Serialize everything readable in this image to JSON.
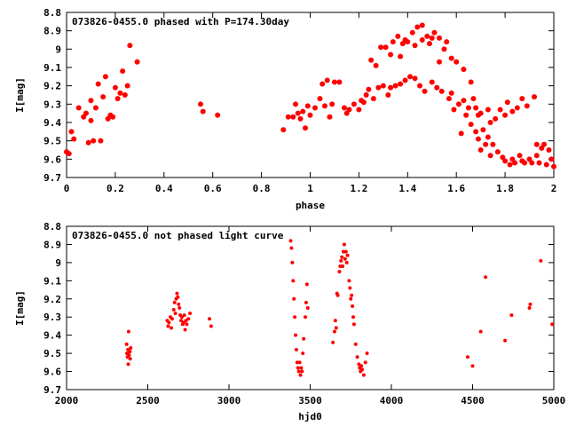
{
  "chart_data": [
    {
      "type": "scatter",
      "title": "073826-0455.0 phased with P=174.30day",
      "xlabel": "phase",
      "ylabel": "I[mag]",
      "xlim": [
        0,
        2
      ],
      "ylim": [
        8.8,
        9.7
      ],
      "y_inverted": true,
      "xticks": [
        "0",
        "0.2",
        "0.4",
        "0.6",
        "0.8",
        "1",
        "1.2",
        "1.4",
        "1.6",
        "1.8",
        "2"
      ],
      "yticks": [
        "8.8",
        "8.9",
        "9",
        "9.1",
        "9.2",
        "9.3",
        "9.4",
        "9.5",
        "9.6",
        "9.7"
      ],
      "color": "#ff0000",
      "marker": "filled-circle",
      "points": [
        [
          0.0,
          9.56
        ],
        [
          0.01,
          9.57
        ],
        [
          0.02,
          9.45
        ],
        [
          0.03,
          9.49
        ],
        [
          0.05,
          9.32
        ],
        [
          0.07,
          9.37
        ],
        [
          0.08,
          9.35
        ],
        [
          0.09,
          9.51
        ],
        [
          0.1,
          9.28
        ],
        [
          0.1,
          9.39
        ],
        [
          0.11,
          9.5
        ],
        [
          0.12,
          9.32
        ],
        [
          0.13,
          9.19
        ],
        [
          0.14,
          9.5
        ],
        [
          0.15,
          9.26
        ],
        [
          0.16,
          9.15
        ],
        [
          0.17,
          9.38
        ],
        [
          0.18,
          9.36
        ],
        [
          0.19,
          9.37
        ],
        [
          0.2,
          9.21
        ],
        [
          0.21,
          9.27
        ],
        [
          0.22,
          9.24
        ],
        [
          0.23,
          9.12
        ],
        [
          0.24,
          9.25
        ],
        [
          0.25,
          9.2
        ],
        [
          0.26,
          8.98
        ],
        [
          0.29,
          9.07
        ],
        [
          0.55,
          9.3
        ],
        [
          0.56,
          9.34
        ],
        [
          0.62,
          9.36
        ],
        [
          0.89,
          9.44
        ],
        [
          0.91,
          9.37
        ],
        [
          0.93,
          9.37
        ],
        [
          0.94,
          9.3
        ],
        [
          0.95,
          9.35
        ],
        [
          0.96,
          9.38
        ],
        [
          0.97,
          9.34
        ],
        [
          0.98,
          9.43
        ],
        [
          0.99,
          9.31
        ],
        [
          1.0,
          9.36
        ],
        [
          1.02,
          9.32
        ],
        [
          1.04,
          9.27
        ],
        [
          1.05,
          9.19
        ],
        [
          1.06,
          9.31
        ],
        [
          1.07,
          9.17
        ],
        [
          1.08,
          9.37
        ],
        [
          1.09,
          9.3
        ],
        [
          1.1,
          9.18
        ],
        [
          1.12,
          9.18
        ],
        [
          1.14,
          9.32
        ],
        [
          1.15,
          9.35
        ],
        [
          1.16,
          9.33
        ],
        [
          1.18,
          9.3
        ],
        [
          1.2,
          9.33
        ],
        [
          1.21,
          9.28
        ],
        [
          1.22,
          9.29
        ],
        [
          1.23,
          9.25
        ],
        [
          1.24,
          9.22
        ],
        [
          1.25,
          9.06
        ],
        [
          1.26,
          9.27
        ],
        [
          1.27,
          9.09
        ],
        [
          1.28,
          9.21
        ],
        [
          1.29,
          8.99
        ],
        [
          1.3,
          9.2
        ],
        [
          1.31,
          8.99
        ],
        [
          1.32,
          9.25
        ],
        [
          1.33,
          9.21
        ],
        [
          1.33,
          9.03
        ],
        [
          1.34,
          8.96
        ],
        [
          1.35,
          9.2
        ],
        [
          1.36,
          8.93
        ],
        [
          1.37,
          9.19
        ],
        [
          1.37,
          9.04
        ],
        [
          1.38,
          8.97
        ],
        [
          1.39,
          9.17
        ],
        [
          1.39,
          8.95
        ],
        [
          1.4,
          8.96
        ],
        [
          1.41,
          9.15
        ],
        [
          1.42,
          8.91
        ],
        [
          1.43,
          9.16
        ],
        [
          1.43,
          8.98
        ],
        [
          1.44,
          8.88
        ],
        [
          1.45,
          9.2
        ],
        [
          1.46,
          8.95
        ],
        [
          1.46,
          8.87
        ],
        [
          1.47,
          9.23
        ],
        [
          1.48,
          8.93
        ],
        [
          1.49,
          8.97
        ],
        [
          1.5,
          9.18
        ],
        [
          1.5,
          8.94
        ],
        [
          1.51,
          8.91
        ],
        [
          1.52,
          9.21
        ],
        [
          1.53,
          8.94
        ],
        [
          1.53,
          9.07
        ],
        [
          1.54,
          9.23
        ],
        [
          1.55,
          9.0
        ],
        [
          1.56,
          8.96
        ],
        [
          1.57,
          9.27
        ],
        [
          1.58,
          9.05
        ],
        [
          1.58,
          9.24
        ],
        [
          1.59,
          9.33
        ],
        [
          1.6,
          9.07
        ],
        [
          1.61,
          9.3
        ],
        [
          1.62,
          9.46
        ],
        [
          1.63,
          9.28
        ],
        [
          1.63,
          9.11
        ],
        [
          1.64,
          9.36
        ],
        [
          1.65,
          9.32
        ],
        [
          1.66,
          9.18
        ],
        [
          1.66,
          9.41
        ],
        [
          1.67,
          9.27
        ],
        [
          1.68,
          9.45
        ],
        [
          1.68,
          9.32
        ],
        [
          1.69,
          9.49
        ],
        [
          1.69,
          9.36
        ],
        [
          1.7,
          9.55
        ],
        [
          1.7,
          9.35
        ],
        [
          1.71,
          9.44
        ],
        [
          1.72,
          9.52
        ],
        [
          1.73,
          9.33
        ],
        [
          1.73,
          9.48
        ],
        [
          1.74,
          9.58
        ],
        [
          1.74,
          9.4
        ],
        [
          1.75,
          9.52
        ],
        [
          1.76,
          9.38
        ],
        [
          1.77,
          9.56
        ],
        [
          1.78,
          9.33
        ],
        [
          1.79,
          9.59
        ],
        [
          1.8,
          9.36
        ],
        [
          1.8,
          9.61
        ],
        [
          1.81,
          9.29
        ],
        [
          1.82,
          9.63
        ],
        [
          1.83,
          9.34
        ],
        [
          1.83,
          9.6
        ],
        [
          1.84,
          9.62
        ],
        [
          1.85,
          9.32
        ],
        [
          1.86,
          9.58
        ],
        [
          1.87,
          9.61
        ],
        [
          1.87,
          9.27
        ],
        [
          1.88,
          9.62
        ],
        [
          1.89,
          9.31
        ],
        [
          1.9,
          9.6
        ],
        [
          1.91,
          9.62
        ],
        [
          1.92,
          9.26
        ],
        [
          1.93,
          9.58
        ],
        [
          1.93,
          9.52
        ],
        [
          1.94,
          9.62
        ],
        [
          1.95,
          9.54
        ],
        [
          1.96,
          9.52
        ],
        [
          1.97,
          9.63
        ],
        [
          1.98,
          9.55
        ],
        [
          1.99,
          9.6
        ],
        [
          2.0,
          9.64
        ]
      ]
    },
    {
      "type": "scatter",
      "title": "073826-0455.0 not phased light curve",
      "xlabel": "hjd0",
      "ylabel": "I[mag]",
      "xlim": [
        2000,
        5000
      ],
      "ylim": [
        8.8,
        9.7
      ],
      "y_inverted": true,
      "xticks": [
        "2000",
        "2500",
        "3000",
        "3500",
        "4000",
        "4500",
        "5000"
      ],
      "yticks": [
        "8.8",
        "8.9",
        "9",
        "9.1",
        "9.2",
        "9.3",
        "9.4",
        "9.5",
        "9.6",
        "9.7"
      ],
      "color": "#ff0000",
      "marker": "filled-circle",
      "points": [
        [
          2370,
          9.45
        ],
        [
          2372,
          9.5
        ],
        [
          2375,
          9.52
        ],
        [
          2378,
          9.48
        ],
        [
          2380,
          9.56
        ],
        [
          2382,
          9.38
        ],
        [
          2385,
          9.51
        ],
        [
          2390,
          9.49
        ],
        [
          2392,
          9.53
        ],
        [
          2395,
          9.47
        ],
        [
          2620,
          9.32
        ],
        [
          2625,
          9.35
        ],
        [
          2630,
          9.33
        ],
        [
          2640,
          9.3
        ],
        [
          2645,
          9.36
        ],
        [
          2650,
          9.31
        ],
        [
          2660,
          9.26
        ],
        [
          2665,
          9.22
        ],
        [
          2670,
          9.28
        ],
        [
          2675,
          9.2
        ],
        [
          2680,
          9.17
        ],
        [
          2685,
          9.19
        ],
        [
          2690,
          9.23
        ],
        [
          2695,
          9.25
        ],
        [
          2700,
          9.29
        ],
        [
          2705,
          9.32
        ],
        [
          2710,
          9.3
        ],
        [
          2715,
          9.34
        ],
        [
          2720,
          9.33
        ],
        [
          2725,
          9.29
        ],
        [
          2730,
          9.37
        ],
        [
          2735,
          9.32
        ],
        [
          2740,
          9.34
        ],
        [
          2750,
          9.31
        ],
        [
          2760,
          9.28
        ],
        [
          2880,
          9.31
        ],
        [
          2890,
          9.35
        ],
        [
          3380,
          8.88
        ],
        [
          3385,
          8.92
        ],
        [
          3390,
          9.0
        ],
        [
          3395,
          9.1
        ],
        [
          3400,
          9.2
        ],
        [
          3405,
          9.3
        ],
        [
          3410,
          9.4
        ],
        [
          3415,
          9.48
        ],
        [
          3420,
          9.55
        ],
        [
          3425,
          9.58
        ],
        [
          3430,
          9.6
        ],
        [
          3435,
          9.55
        ],
        [
          3440,
          9.62
        ],
        [
          3445,
          9.58
        ],
        [
          3450,
          9.6
        ],
        [
          3455,
          9.5
        ],
        [
          3460,
          9.42
        ],
        [
          3470,
          9.3
        ],
        [
          3475,
          9.22
        ],
        [
          3480,
          9.12
        ],
        [
          3485,
          9.25
        ],
        [
          3640,
          9.44
        ],
        [
          3650,
          9.38
        ],
        [
          3655,
          9.32
        ],
        [
          3660,
          9.36
        ],
        [
          3665,
          9.17
        ],
        [
          3670,
          9.18
        ],
        [
          3680,
          9.05
        ],
        [
          3685,
          9.02
        ],
        [
          3690,
          8.99
        ],
        [
          3695,
          8.97
        ],
        [
          3700,
          9.02
        ],
        [
          3705,
          8.94
        ],
        [
          3710,
          8.9
        ],
        [
          3715,
          8.98
        ],
        [
          3720,
          8.94
        ],
        [
          3725,
          9.0
        ],
        [
          3730,
          8.96
        ],
        [
          3740,
          9.1
        ],
        [
          3745,
          9.14
        ],
        [
          3750,
          9.2
        ],
        [
          3755,
          9.18
        ],
        [
          3760,
          9.24
        ],
        [
          3765,
          9.3
        ],
        [
          3770,
          9.34
        ],
        [
          3780,
          9.45
        ],
        [
          3790,
          9.52
        ],
        [
          3800,
          9.56
        ],
        [
          3805,
          9.58
        ],
        [
          3810,
          9.6
        ],
        [
          3815,
          9.57
        ],
        [
          3820,
          9.59
        ],
        [
          3830,
          9.62
        ],
        [
          3840,
          9.55
        ],
        [
          3850,
          9.5
        ],
        [
          4470,
          9.52
        ],
        [
          4500,
          9.57
        ],
        [
          4550,
          9.38
        ],
        [
          4580,
          9.08
        ],
        [
          4700,
          9.43
        ],
        [
          4740,
          9.29
        ],
        [
          4850,
          9.25
        ],
        [
          4855,
          9.23
        ],
        [
          4920,
          8.99
        ],
        [
          4990,
          9.34
        ]
      ]
    }
  ]
}
